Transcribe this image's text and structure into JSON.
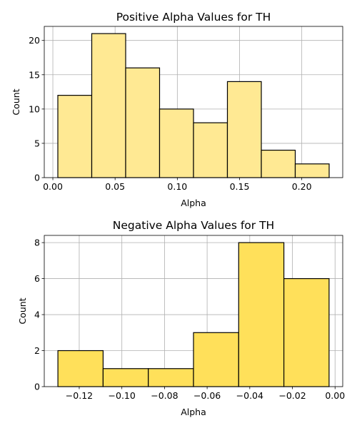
{
  "chart_data": [
    {
      "type": "bar",
      "subtype": "histogram",
      "title": "Positive Alpha Values for TH",
      "xlabel": "Alpha",
      "ylabel": "Count",
      "bin_edges": [
        0.004,
        0.03125,
        0.0585,
        0.08575,
        0.113,
        0.14025,
        0.1675,
        0.19475,
        0.222
      ],
      "values": [
        12,
        21,
        16,
        10,
        8,
        14,
        4,
        2
      ],
      "xlim": [
        -0.0069,
        0.2329
      ],
      "ylim": [
        0,
        22.05
      ],
      "xticks": [
        0.0,
        0.05,
        0.1,
        0.15,
        0.2
      ],
      "xtick_labels": [
        "0.00",
        "0.05",
        "0.10",
        "0.15",
        "0.20"
      ],
      "yticks": [
        0,
        5,
        10,
        15,
        20
      ],
      "ytick_labels": [
        "0",
        "5",
        "10",
        "15",
        "20"
      ],
      "grid": true,
      "bar_color": "#ffe993",
      "edge_color": "#000000"
    },
    {
      "type": "bar",
      "subtype": "histogram",
      "title": "Negative Alpha Values for TH",
      "xlabel": "Alpha",
      "ylabel": "Count",
      "bin_edges": [
        -0.13,
        -0.1088,
        -0.0876,
        -0.0664,
        -0.0452,
        -0.024,
        -0.0028
      ],
      "values": [
        2,
        1,
        1,
        3,
        8,
        6
      ],
      "xlim": [
        -0.1364,
        0.0036
      ],
      "ylim": [
        0,
        8.4
      ],
      "xticks": [
        -0.12,
        -0.1,
        -0.08,
        -0.06,
        -0.04,
        -0.02,
        0.0
      ],
      "xtick_labels": [
        "−0.12",
        "−0.10",
        "−0.08",
        "−0.06",
        "−0.04",
        "−0.02",
        "0.00"
      ],
      "yticks": [
        0,
        2,
        4,
        6,
        8
      ],
      "ytick_labels": [
        "0",
        "2",
        "4",
        "6",
        "8"
      ],
      "grid": true,
      "bar_color": "#ffe05a",
      "edge_color": "#000000"
    }
  ]
}
